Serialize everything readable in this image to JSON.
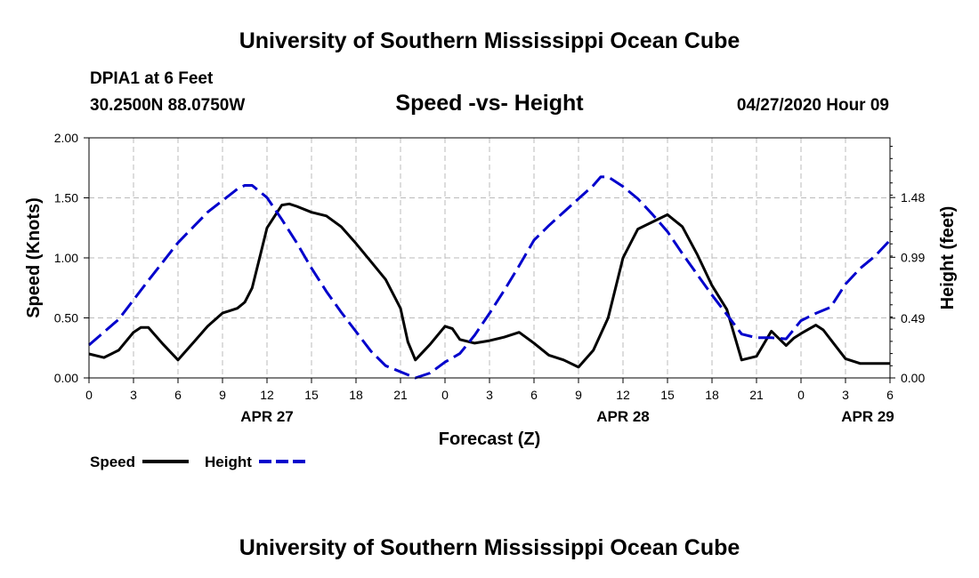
{
  "header": {
    "title": "University of Southern Mississippi Ocean Cube",
    "station": "DPIA1 at 6 Feet",
    "coords": "30.2500N 88.0750W",
    "subtitle": "Speed -vs- Height",
    "date": "04/27/2020 Hour 09",
    "footer_title": "University of Southern Mississippi Ocean Cube"
  },
  "chart_data": {
    "type": "line",
    "title": "Speed -vs- Height",
    "xlabel": "Forecast (Z)",
    "ylabel": "Speed (Knots)",
    "y2label": "Height (feet)",
    "x_unit": "forecast hours from APR 27 00Z",
    "xlim": [
      0,
      54
    ],
    "ylim": [
      0,
      2.0
    ],
    "y2lim": [
      0,
      1.97
    ],
    "x_ticks": [
      0,
      3,
      6,
      9,
      12,
      15,
      18,
      21,
      24,
      27,
      30,
      33,
      36,
      39,
      42,
      45,
      48,
      51,
      54
    ],
    "x_tick_labels": [
      "0",
      "3",
      "6",
      "9",
      "12",
      "15",
      "18",
      "21",
      "0",
      "3",
      "6",
      "9",
      "12",
      "15",
      "18",
      "21",
      "0",
      "3",
      "6"
    ],
    "y_ticks": [
      0,
      0.5,
      1.0,
      1.5,
      2.0
    ],
    "y_tick_labels": [
      "0.00",
      "0.50",
      "1.00",
      "1.50",
      "2.00"
    ],
    "y2_ticks": [
      0,
      0.49,
      0.99,
      1.48
    ],
    "y2_tick_labels": [
      "0.00",
      "0.49",
      "0.99",
      "1.48"
    ],
    "date_labels": [
      {
        "x": 12,
        "label": "APR 27"
      },
      {
        "x": 36,
        "label": "APR 28"
      },
      {
        "x": 52.5,
        "label": "APR 29"
      }
    ],
    "grid": true,
    "legend": "bottom-left",
    "series": [
      {
        "name": "Speed",
        "axis": "left",
        "color": "#000000",
        "dash": "solid",
        "x": [
          0,
          1,
          2,
          3,
          3.5,
          4,
          5,
          6,
          7,
          8,
          9,
          10,
          10.5,
          11,
          11.5,
          12,
          13,
          13.5,
          14,
          15,
          16,
          17,
          18,
          19,
          20,
          21,
          21.5,
          22,
          23,
          24,
          24.5,
          25,
          26,
          27,
          28,
          29,
          30,
          31,
          32,
          33,
          34,
          35,
          36,
          37,
          38,
          39,
          40,
          41,
          42,
          43,
          44,
          45,
          46,
          47,
          47.5,
          48,
          49,
          49.5,
          50,
          51,
          52,
          53,
          54
        ],
        "values": [
          0.2,
          0.17,
          0.23,
          0.38,
          0.42,
          0.42,
          0.28,
          0.15,
          0.29,
          0.43,
          0.54,
          0.58,
          0.63,
          0.75,
          1.0,
          1.25,
          1.44,
          1.45,
          1.43,
          1.38,
          1.35,
          1.26,
          1.12,
          0.97,
          0.82,
          0.58,
          0.3,
          0.15,
          0.28,
          0.43,
          0.41,
          0.32,
          0.29,
          0.31,
          0.34,
          0.38,
          0.29,
          0.19,
          0.15,
          0.09,
          0.23,
          0.5,
          1.0,
          1.24,
          1.3,
          1.36,
          1.26,
          1.03,
          0.77,
          0.57,
          0.15,
          0.18,
          0.39,
          0.27,
          0.33,
          0.37,
          0.44,
          0.4,
          0.32,
          0.16,
          0.12,
          0.12,
          0.12
        ]
      },
      {
        "name": "Height",
        "axis": "right",
        "color": "#0000cc",
        "dash": "dashed",
        "x": [
          0,
          2,
          4,
          6,
          8,
          10,
          10.5,
          11,
          12,
          13,
          14,
          15,
          16,
          17,
          18,
          19,
          20,
          21,
          22,
          23,
          24,
          25,
          26,
          27,
          28,
          29,
          30,
          31,
          32,
          33,
          34,
          34.5,
          35,
          36,
          37,
          38,
          39,
          40,
          41,
          42,
          43,
          44,
          45,
          46,
          47,
          48,
          49,
          50,
          51,
          52,
          53,
          54
        ],
        "values": [
          0.27,
          0.48,
          0.8,
          1.11,
          1.36,
          1.55,
          1.58,
          1.58,
          1.48,
          1.3,
          1.11,
          0.9,
          0.71,
          0.54,
          0.38,
          0.22,
          0.1,
          0.05,
          0.0,
          0.04,
          0.13,
          0.2,
          0.35,
          0.53,
          0.72,
          0.92,
          1.13,
          1.25,
          1.36,
          1.47,
          1.58,
          1.65,
          1.65,
          1.57,
          1.47,
          1.34,
          1.2,
          1.02,
          0.85,
          0.68,
          0.52,
          0.36,
          0.33,
          0.33,
          0.32,
          0.47,
          0.53,
          0.58,
          0.77,
          0.9,
          1.0,
          1.13
        ]
      }
    ]
  }
}
